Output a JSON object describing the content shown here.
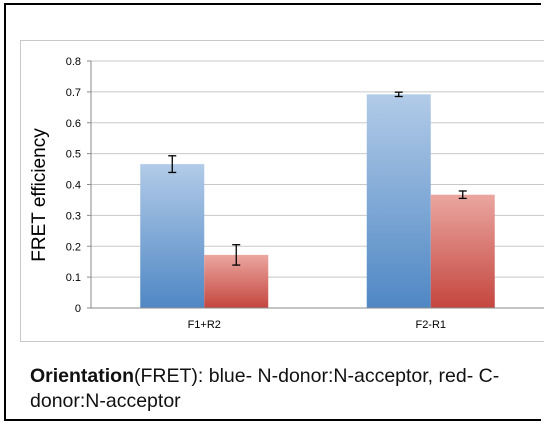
{
  "chart_data": {
    "type": "bar",
    "ylabel": "FRET efficiency",
    "xlabel": "",
    "ylim": [
      0,
      0.8
    ],
    "yticks": [
      "0",
      "0.1",
      "0.2",
      "0.3",
      "0.4",
      "0.5",
      "0.6",
      "0.7",
      "0.8"
    ],
    "categories": [
      "F1+R2",
      "F2-R1"
    ],
    "series": [
      {
        "values": [
          0.466,
          0.692
        ],
        "errors": [
          0.027,
          0.007
        ],
        "color": "#7fa8d6"
      },
      {
        "values": [
          0.172,
          0.367
        ],
        "errors": [
          0.033,
          0.012
        ],
        "color": "#d65f57"
      }
    ],
    "grid": true
  },
  "caption": {
    "bold": "Orientation",
    "rest": "(FRET): blue- N-donor:N-acceptor, red- C-donor:N-acceptor"
  }
}
